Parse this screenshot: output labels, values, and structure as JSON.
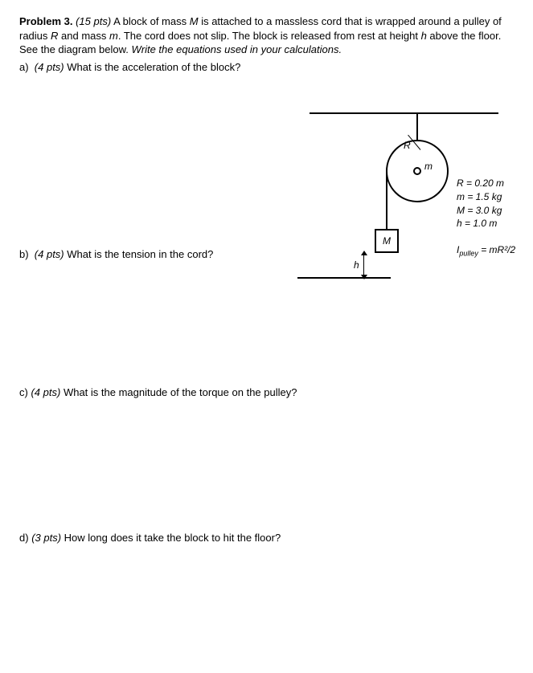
{
  "problem": {
    "label": "Problem 3.",
    "points": "(15 pts)",
    "text_1": "A block of mass ",
    "mass_var_M": "M",
    "text_2": " is attached to a massless cord that is wrapped around a pulley of radius ",
    "radius_var": "R",
    "text_3": " and mass ",
    "mass_var_m": "m",
    "text_4": ". The cord does not slip. The block is released from rest at height ",
    "height_var": "h",
    "text_5": " above the floor. See the diagram below. ",
    "instruction": "Write the equations used in your calculations."
  },
  "parts": {
    "a": {
      "label": "a)",
      "points": "(4 pts)",
      "q": "What is the acceleration of the block?"
    },
    "b": {
      "label": "b)",
      "points": "(4 pts)",
      "q": "What is the tension in the cord?"
    },
    "c": {
      "label": "c)",
      "points": "(4 pts)",
      "q": "What is the magnitude of the torque on the pulley?"
    },
    "d": {
      "label": "d)",
      "points": "(3 pts)",
      "q": "How long does it take the block to hit the floor?"
    }
  },
  "diagram": {
    "R_label": "R",
    "m_label": "m",
    "M_label": "M",
    "h_label": "h",
    "given_R": "R = 0.20 m",
    "given_m": "m = 1.5 kg",
    "given_M": "M = 3.0 kg",
    "given_h": "h = 1.0 m",
    "I_sub": "pulley",
    "I_rhs": " = mR²/2"
  },
  "style": {
    "bg": "#ffffff",
    "text": "#000000",
    "font_size_body": 13,
    "font_size_diagram": 12
  }
}
